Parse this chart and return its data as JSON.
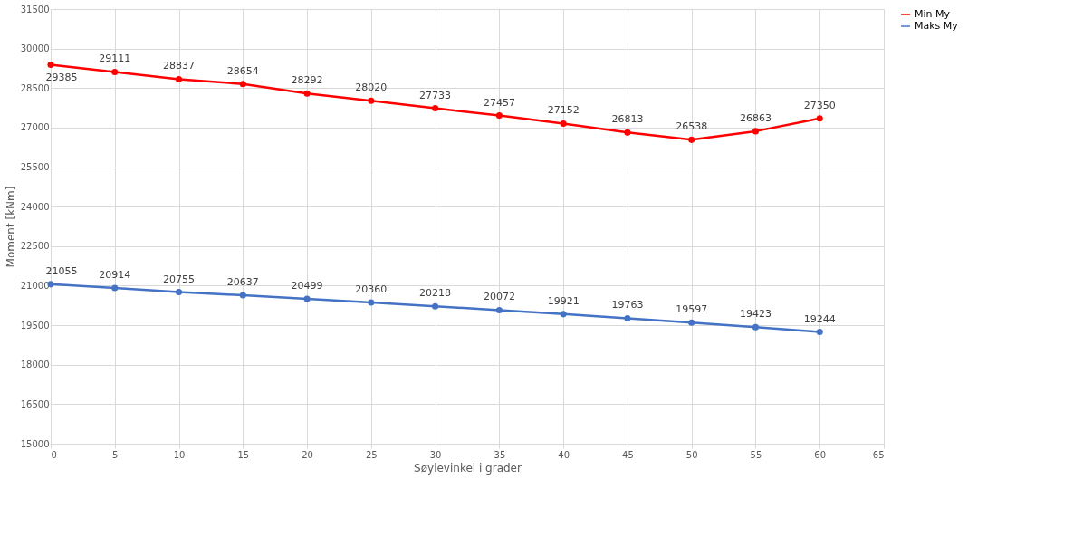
{
  "chart_data": {
    "type": "line",
    "xlabel": "Søylevinkel i grader",
    "ylabel": "Moment [kNm]",
    "x": [
      0,
      5,
      10,
      15,
      20,
      25,
      30,
      35,
      40,
      45,
      50,
      55,
      60
    ],
    "series": [
      {
        "name": "Min My",
        "color": "#ff0000",
        "values": [
          29385,
          29111,
          28837,
          28654,
          28292,
          28020,
          27733,
          27457,
          27152,
          26813,
          26538,
          26863,
          27350
        ]
      },
      {
        "name": "Maks My",
        "color": "#4472c4",
        "values": [
          21055,
          20914,
          20755,
          20637,
          20499,
          20360,
          20218,
          20072,
          19921,
          19763,
          19597,
          19423,
          19244
        ]
      }
    ],
    "xlim": [
      0,
      65
    ],
    "xticks": [
      0,
      5,
      10,
      15,
      20,
      25,
      30,
      35,
      40,
      45,
      50,
      55,
      60,
      65
    ],
    "ylim": [
      15000,
      31500
    ],
    "yticks": [
      15000,
      16500,
      18000,
      19500,
      21000,
      22500,
      24000,
      25500,
      27000,
      28500,
      30000,
      31500
    ],
    "grid": true,
    "legend": "right",
    "marker": "circle",
    "line_style": "solid",
    "data_labels": true
  }
}
